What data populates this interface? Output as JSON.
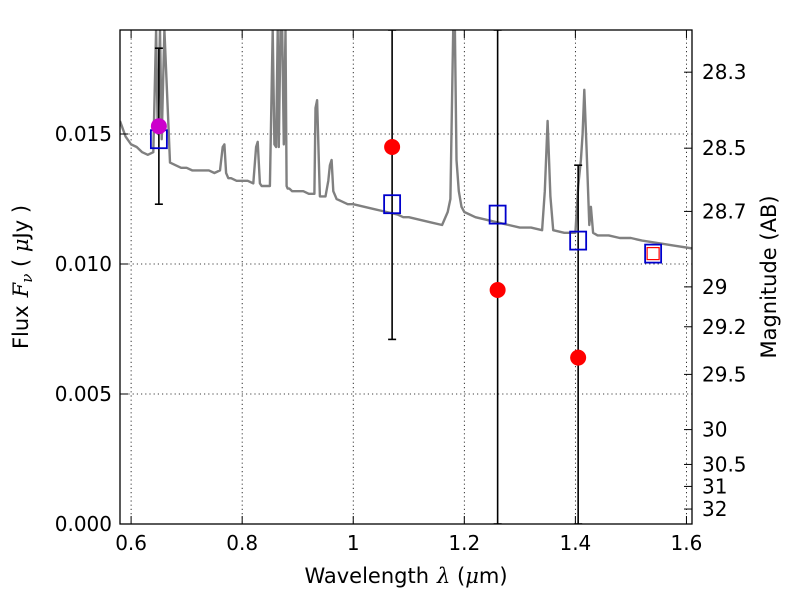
{
  "chart_data": {
    "type": "scatter",
    "xlabel": "Wavelength",
    "xlabel_math": "λ",
    "xlabel_unit_open": " (",
    "xlabel_unit_mu": "μ",
    "xlabel_unit_rest": "m)",
    "ylabel": "Flux",
    "ylabel_math": "F",
    "ylabel_math_sub": "ν",
    "ylabel_unit_open": " ( ",
    "ylabel_unit_mu": "μ",
    "ylabel_unit_rest": "Jy )",
    "y2label": "Magnitude (AB)",
    "xlim": [
      0.58,
      1.61
    ],
    "ylim": [
      0.0,
      0.019
    ],
    "grid": true,
    "x_ticks": [
      {
        "value": 0.6,
        "label": "0.6"
      },
      {
        "value": 0.8,
        "label": "0.8"
      },
      {
        "value": 1.0,
        "label": "1"
      },
      {
        "value": 1.2,
        "label": "1.2"
      },
      {
        "value": 1.4,
        "label": "1.4"
      },
      {
        "value": 1.6,
        "label": "1.6"
      }
    ],
    "y_ticks": [
      {
        "value": 0.0,
        "label": "0.000"
      },
      {
        "value": 0.005,
        "label": "0.005"
      },
      {
        "value": 0.01,
        "label": "0.010"
      },
      {
        "value": 0.015,
        "label": "0.015"
      }
    ],
    "y2_ticks": [
      {
        "mag": 28.3,
        "label": "28.3"
      },
      {
        "mag": 28.5,
        "label": "28.5"
      },
      {
        "mag": 28.7,
        "label": "28.7"
      },
      {
        "mag": 29.0,
        "label": "29"
      },
      {
        "mag": 29.2,
        "label": "29.2"
      },
      {
        "mag": 29.5,
        "label": "29.5"
      },
      {
        "mag": 30.0,
        "label": "30"
      },
      {
        "mag": 30.5,
        "label": "30.5"
      },
      {
        "mag": 31.0,
        "label": "31"
      },
      {
        "mag": 32.0,
        "label": "32"
      }
    ],
    "model_spectrum": {
      "color": "#808080",
      "x": [
        0.58,
        0.585,
        0.59,
        0.6,
        0.61,
        0.62,
        0.63,
        0.64,
        0.645,
        0.648,
        0.652,
        0.655,
        0.66,
        0.67,
        0.68,
        0.69,
        0.7,
        0.71,
        0.72,
        0.73,
        0.74,
        0.75,
        0.76,
        0.765,
        0.768,
        0.771,
        0.775,
        0.78,
        0.79,
        0.8,
        0.81,
        0.82,
        0.825,
        0.828,
        0.832,
        0.835,
        0.84,
        0.85,
        0.855,
        0.858,
        0.861,
        0.864,
        0.866,
        0.869,
        0.872,
        0.875,
        0.878,
        0.88,
        0.882,
        0.885,
        0.89,
        0.9,
        0.91,
        0.92,
        0.93,
        0.932,
        0.935,
        0.938,
        0.94,
        0.95,
        0.955,
        0.958,
        0.961,
        0.964,
        0.97,
        0.98,
        0.99,
        1.0,
        1.02,
        1.04,
        1.06,
        1.08,
        1.09,
        1.1,
        1.12,
        1.14,
        1.16,
        1.17,
        1.175,
        1.18,
        1.183,
        1.186,
        1.19,
        1.195,
        1.2,
        1.22,
        1.24,
        1.26,
        1.28,
        1.3,
        1.32,
        1.34,
        1.345,
        1.35,
        1.355,
        1.36,
        1.38,
        1.4,
        1.405,
        1.41,
        1.413,
        1.416,
        1.42,
        1.425,
        1.428,
        1.432,
        1.44,
        1.46,
        1.48,
        1.5,
        1.52,
        1.55,
        1.58,
        1.61
      ],
      "y": [
        0.0155,
        0.0152,
        0.0149,
        0.0146,
        0.0145,
        0.0143,
        0.0142,
        0.0143,
        0.019,
        0.015,
        0.019,
        0.0148,
        0.019,
        0.0139,
        0.0138,
        0.0137,
        0.0137,
        0.0136,
        0.0136,
        0.0136,
        0.0136,
        0.0135,
        0.0136,
        0.0145,
        0.0146,
        0.0135,
        0.0133,
        0.0133,
        0.0132,
        0.0132,
        0.0132,
        0.0131,
        0.0145,
        0.0147,
        0.0131,
        0.013,
        0.013,
        0.013,
        0.019,
        0.0146,
        0.0145,
        0.019,
        0.0145,
        0.019,
        0.019,
        0.0146,
        0.019,
        0.013,
        0.0129,
        0.0129,
        0.0128,
        0.0128,
        0.0128,
        0.0127,
        0.0127,
        0.016,
        0.0163,
        0.014,
        0.0126,
        0.0126,
        0.0132,
        0.0138,
        0.014,
        0.0128,
        0.0125,
        0.0124,
        0.0123,
        0.0123,
        0.0122,
        0.0121,
        0.012,
        0.0119,
        0.0118,
        0.0118,
        0.0117,
        0.0116,
        0.0115,
        0.012,
        0.0125,
        0.019,
        0.019,
        0.014,
        0.0128,
        0.0122,
        0.012,
        0.0118,
        0.0117,
        0.0116,
        0.0115,
        0.0114,
        0.0114,
        0.0113,
        0.0128,
        0.0155,
        0.0126,
        0.0113,
        0.0112,
        0.0112,
        0.013,
        0.014,
        0.015,
        0.0167,
        0.0145,
        0.0115,
        0.0122,
        0.0112,
        0.0111,
        0.0111,
        0.011,
        0.011,
        0.0109,
        0.0108,
        0.0107,
        0.0106
      ]
    },
    "model_photometry": {
      "marker": "open-square",
      "color": "#0000cc",
      "points": [
        {
          "x": 0.65,
          "y": 0.0148
        },
        {
          "x": 1.07,
          "y": 0.0123
        },
        {
          "x": 1.26,
          "y": 0.0119
        },
        {
          "x": 1.405,
          "y": 0.0109
        },
        {
          "x": 1.54,
          "y": 0.0104
        }
      ]
    },
    "observed": {
      "marker": "filled-circle",
      "color": "#ff0000",
      "points": [
        {
          "x": 0.65,
          "y": 0.0153,
          "yerr_low": 0.0123,
          "yerr_high": 0.0183,
          "color": "#cc00cc"
        },
        {
          "x": 1.07,
          "y": 0.0145,
          "yerr_low": 0.0071,
          "yerr_high": 0.019
        },
        {
          "x": 1.26,
          "y": 0.009,
          "yerr_low": 0.0,
          "yerr_high": 0.019
        },
        {
          "x": 1.405,
          "y": 0.0064,
          "yerr_low": 0.0,
          "yerr_high": 0.0138
        }
      ]
    },
    "extra_marker": {
      "x": 1.54,
      "y": 0.0104,
      "marker": "small-open-square",
      "color": "#ff0000"
    }
  }
}
